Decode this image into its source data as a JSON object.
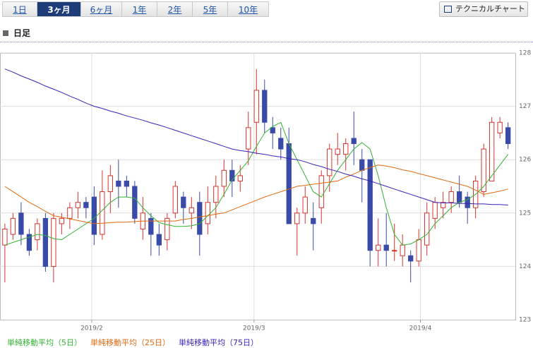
{
  "tabs": [
    "1日",
    "3ヶ月",
    "6ヶ月",
    "1年",
    "2年",
    "5年",
    "10年"
  ],
  "selected_tab": 1,
  "technical_button": "テクニカルチャート",
  "section_title": "日足",
  "chart_data": {
    "type": "candlestick",
    "up_color": "#d9342b",
    "down_color": "#3a4aa8",
    "candles": [
      [
        124.4,
        124.8,
        123.7,
        124.7
      ],
      [
        124.6,
        125.0,
        124.5,
        124.9
      ],
      [
        125.0,
        125.2,
        124.4,
        124.6
      ],
      [
        124.6,
        124.7,
        124.2,
        124.3
      ],
      [
        124.5,
        124.9,
        124.3,
        124.8
      ],
      [
        124.9,
        125.0,
        123.9,
        124.0
      ],
      [
        124.0,
        125.0,
        123.7,
        124.9
      ],
      [
        124.8,
        125.0,
        124.6,
        124.9
      ],
      [
        124.9,
        125.2,
        124.7,
        125.1
      ],
      [
        125.1,
        125.4,
        124.9,
        125.2
      ],
      [
        125.2,
        125.3,
        124.9,
        125.1
      ],
      [
        125.3,
        125.5,
        124.4,
        124.6
      ],
      [
        124.6,
        125.8,
        124.5,
        125.4
      ],
      [
        125.4,
        125.9,
        125.0,
        125.7
      ],
      [
        125.6,
        126.0,
        125.1,
        125.5
      ],
      [
        125.6,
        125.7,
        125.3,
        125.5
      ],
      [
        125.5,
        125.6,
        124.8,
        124.9
      ],
      [
        124.7,
        125.3,
        124.5,
        125.0
      ],
      [
        124.9,
        125.0,
        124.2,
        124.6
      ],
      [
        124.6,
        124.8,
        124.2,
        124.4
      ],
      [
        124.5,
        125.0,
        124.3,
        124.9
      ],
      [
        125.0,
        125.6,
        124.9,
        125.5
      ],
      [
        125.3,
        125.4,
        124.8,
        125.1
      ],
      [
        125.0,
        125.3,
        124.7,
        125.1
      ],
      [
        125.2,
        125.4,
        124.2,
        124.6
      ],
      [
        124.8,
        125.5,
        124.6,
        125.2
      ],
      [
        125.2,
        125.7,
        124.9,
        125.5
      ],
      [
        125.5,
        126.0,
        125.3,
        125.8
      ],
      [
        125.8,
        126.0,
        125.3,
        125.6
      ],
      [
        125.6,
        125.9,
        125.4,
        125.7
      ],
      [
        126.2,
        126.9,
        125.9,
        126.6
      ],
      [
        126.7,
        127.7,
        126.1,
        127.3
      ],
      [
        127.3,
        127.5,
        126.5,
        126.7
      ],
      [
        126.6,
        126.8,
        126.2,
        126.5
      ],
      [
        126.4,
        126.6,
        126.0,
        126.2
      ],
      [
        126.3,
        126.6,
        124.8,
        124.8
      ],
      [
        124.8,
        125.1,
        124.2,
        125.0
      ],
      [
        125.0,
        125.5,
        124.8,
        125.3
      ],
      [
        124.9,
        125.2,
        124.3,
        124.8
      ],
      [
        125.1,
        125.8,
        124.8,
        125.7
      ],
      [
        125.7,
        126.3,
        125.4,
        126.2
      ],
      [
        126.1,
        126.5,
        125.9,
        126.2
      ],
      [
        126.1,
        126.4,
        125.8,
        126.3
      ],
      [
        126.4,
        126.9,
        125.9,
        126.3
      ],
      [
        126.0,
        126.2,
        125.2,
        125.8
      ],
      [
        126.0,
        126.0,
        124.0,
        124.3
      ],
      [
        124.3,
        124.9,
        124.0,
        124.4
      ],
      [
        124.4,
        125.0,
        124.0,
        124.3
      ],
      [
        124.3,
        124.8,
        124.1,
        124.3
      ],
      [
        124.2,
        124.6,
        124.0,
        124.4
      ],
      [
        124.2,
        124.3,
        123.7,
        124.1
      ],
      [
        124.1,
        124.7,
        124.0,
        124.5
      ],
      [
        124.4,
        125.2,
        124.2,
        125.0
      ],
      [
        124.9,
        125.3,
        124.7,
        125.2
      ],
      [
        125.1,
        125.4,
        124.9,
        125.2
      ],
      [
        125.2,
        125.5,
        125.0,
        125.4
      ],
      [
        125.4,
        125.7,
        125.1,
        125.2
      ],
      [
        125.3,
        125.4,
        124.8,
        125.1
      ],
      [
        125.1,
        125.7,
        124.9,
        125.6
      ],
      [
        125.4,
        126.3,
        125.3,
        126.2
      ],
      [
        125.6,
        126.8,
        125.6,
        126.7
      ],
      [
        126.5,
        126.8,
        126.4,
        126.7
      ],
      [
        126.6,
        126.7,
        126.2,
        126.3
      ]
    ],
    "series": [
      {
        "name": "単純移動平均（5日）",
        "color": "#33b233",
        "values": [
          124.4,
          124.45,
          124.5,
          124.55,
          124.6,
          124.58,
          124.52,
          124.5,
          124.6,
          124.7,
          124.8,
          124.9,
          125.05,
          125.2,
          125.3,
          125.3,
          125.28,
          125.1,
          124.95,
          124.82,
          124.78,
          124.75,
          124.75,
          124.76,
          124.8,
          124.95,
          125.1,
          125.35,
          125.62,
          125.8,
          125.98,
          126.25,
          126.5,
          126.62,
          126.7,
          126.3,
          126.0,
          125.7,
          125.4,
          125.3,
          125.55,
          125.8,
          126.0,
          126.2,
          126.32,
          126.2,
          125.7,
          125.1,
          124.6,
          124.4,
          124.42,
          124.5,
          124.6,
          124.8,
          124.95,
          125.1,
          125.2,
          125.25,
          125.35,
          125.5,
          125.7,
          125.9,
          126.1
        ]
      },
      {
        "name": "単純移動平均（25日）",
        "color": "#e06a10",
        "values": [
          125.5,
          125.4,
          125.3,
          125.2,
          125.12,
          125.03,
          124.95,
          124.92,
          124.89,
          124.86,
          124.83,
          124.8,
          124.81,
          124.82,
          124.83,
          124.83,
          124.84,
          124.85,
          124.85,
          124.85,
          124.85,
          124.85,
          124.88,
          124.9,
          124.93,
          124.95,
          124.98,
          125.0,
          125.06,
          125.12,
          125.18,
          125.24,
          125.3,
          125.35,
          125.4,
          125.45,
          125.5,
          125.52,
          125.54,
          125.56,
          125.58,
          125.6,
          125.67,
          125.73,
          125.8,
          125.85,
          125.9,
          125.88,
          125.85,
          125.81,
          125.78,
          125.74,
          125.7,
          125.66,
          125.62,
          125.58,
          125.54,
          125.5,
          125.43,
          125.35,
          125.38,
          125.41,
          125.45
        ]
      },
      {
        "name": "単純移動平均（75日）",
        "color": "#3b1fb8",
        "values": [
          127.7,
          127.64,
          127.57,
          127.51,
          127.45,
          127.38,
          127.32,
          127.26,
          127.19,
          127.13,
          127.06,
          127.0,
          126.96,
          126.91,
          126.87,
          126.82,
          126.78,
          126.74,
          126.69,
          126.65,
          126.6,
          126.55,
          126.5,
          126.45,
          126.4,
          126.35,
          126.3,
          126.25,
          126.2,
          126.17,
          126.15,
          126.12,
          126.1,
          126.07,
          126.05,
          126.02,
          126.0,
          125.96,
          125.91,
          125.87,
          125.82,
          125.78,
          125.73,
          125.69,
          125.64,
          125.6,
          125.55,
          125.5,
          125.45,
          125.4,
          125.35,
          125.3,
          125.25,
          125.2,
          125.19,
          125.19,
          125.18,
          125.18,
          125.17,
          125.17,
          125.16,
          125.16,
          125.15
        ]
      }
    ],
    "xlim": [
      -0.6,
      62.9
    ],
    "xticks": [
      {
        "value": 10.7,
        "label": "2019/2"
      },
      {
        "value": 30.7,
        "label": "2019/3"
      },
      {
        "value": 51.2,
        "label": "2019/4"
      }
    ],
    "ylim": [
      123,
      128
    ],
    "yticks": [
      123,
      124,
      125,
      126,
      127,
      128
    ],
    "grid": true
  }
}
